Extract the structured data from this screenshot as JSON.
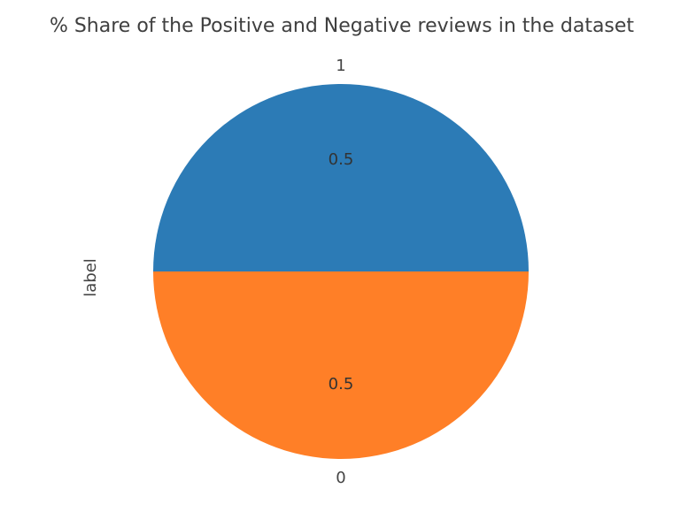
{
  "chart_data": {
    "type": "pie",
    "title": "% Share of the Positive and Negative reviews in the dataset",
    "ylabel": "label",
    "slices": [
      {
        "label": "1",
        "value": 0.5,
        "pct_label": "0.5",
        "color": "#2c7bb6"
      },
      {
        "label": "0",
        "value": 0.5,
        "pct_label": "0.5",
        "color": "#ff7f27"
      }
    ],
    "legend": "none",
    "grid": false
  }
}
